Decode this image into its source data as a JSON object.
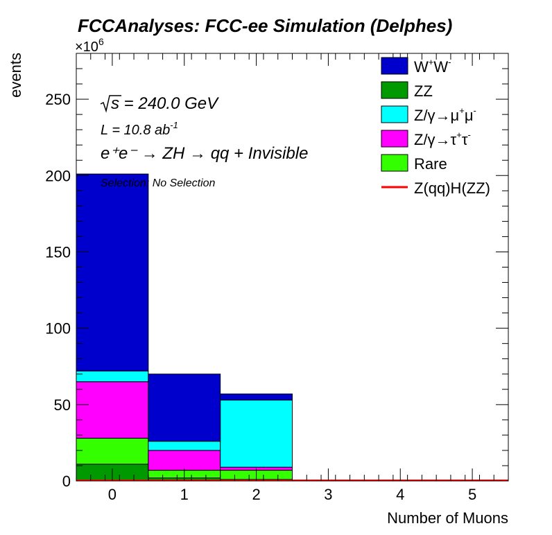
{
  "chart_data": {
    "type": "bar",
    "stacked": true,
    "title": "FCCAnalyses: FCC-ee Simulation (Delphes)",
    "xlabel": "Number of Muons",
    "ylabel": "events",
    "y_multiplier": "×10",
    "y_multiplier_exp": "6",
    "categories": [
      "0",
      "1",
      "2",
      "3",
      "4",
      "5"
    ],
    "xlim": [
      -0.5,
      5.5
    ],
    "ylim": [
      0,
      280
    ],
    "yticks": [
      "0",
      "50",
      "100",
      "150",
      "200",
      "250"
    ],
    "series": [
      {
        "name": "ZZ",
        "color": "#009900",
        "values": [
          11,
          2,
          1,
          0,
          0,
          0
        ]
      },
      {
        "name": "Rare",
        "color": "#33ff00",
        "values": [
          17,
          5,
          6,
          0,
          0,
          0
        ]
      },
      {
        "name": "Z/γ→τ⁺τ⁻",
        "color": "#ff00ff",
        "values": [
          37,
          13,
          2,
          0,
          0,
          0
        ]
      },
      {
        "name": "Z/γ→μ⁺μ⁻",
        "color": "#00ffff",
        "values": [
          7,
          6,
          44,
          0,
          0,
          0
        ]
      },
      {
        "name": "W⁺W⁻",
        "color": "#0000cc",
        "values": [
          129,
          44,
          4,
          0,
          0,
          0
        ]
      }
    ],
    "signal": {
      "name": "Z(qq)H(ZZ)",
      "color": "#ff0000",
      "values": [
        0.0,
        0.0,
        0.0,
        0.0,
        0.0,
        0.0
      ]
    },
    "legend": {
      "placement": "top-right",
      "entries": [
        {
          "key": "WW",
          "label_main": "W",
          "sup1": "+",
          "mid": "W",
          "sup2": "-",
          "color": "#0000cc",
          "kind": "box"
        },
        {
          "key": "ZZ",
          "label": "ZZ",
          "color": "#009900",
          "kind": "box"
        },
        {
          "key": "Zmumu",
          "label": "Z/γ→μ",
          "sup1": "+",
          "mid": "μ",
          "sup2": "-",
          "color": "#00ffff",
          "kind": "box"
        },
        {
          "key": "Ztautau",
          "label": "Z/γ→τ",
          "sup1": "+",
          "mid": "τ",
          "sup2": "-",
          "color": "#ff00ff",
          "kind": "box"
        },
        {
          "key": "Rare",
          "label": "Rare",
          "color": "#33ff00",
          "kind": "box"
        },
        {
          "key": "signal",
          "label": "Z(qq)H(ZZ)",
          "color": "#ff0000",
          "kind": "line"
        }
      ]
    },
    "annotations": {
      "sqrt_s": "s = 240.0 GeV",
      "lumi": "L = 10.8 ab",
      "lumi_exp": "-1",
      "process": "e⁺e⁻ → ZH → qq + Invisible",
      "selection": "Selection: No Selection"
    }
  }
}
